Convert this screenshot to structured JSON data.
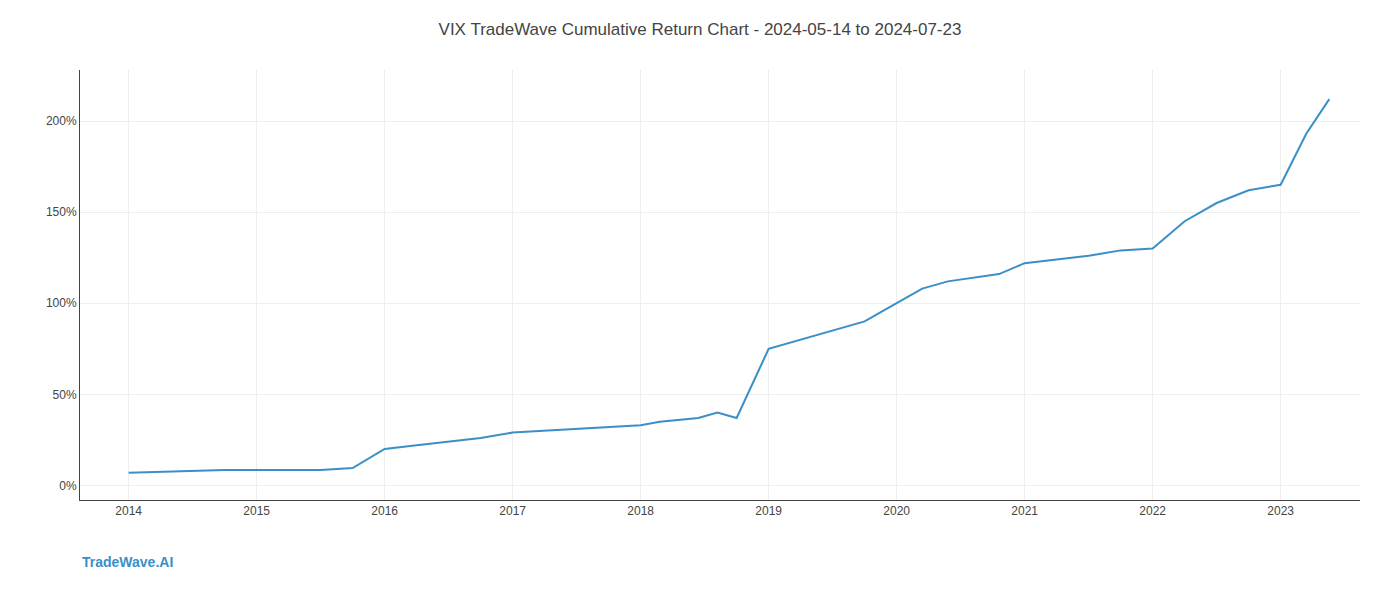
{
  "chart_data": {
    "type": "line",
    "title": "VIX TradeWave Cumulative Return Chart - 2024-05-14 to 2024-07-23",
    "annotations": [
      "TradeWave.AI"
    ],
    "x": [
      2014.0,
      2014.25,
      2014.5,
      2014.75,
      2015.0,
      2015.25,
      2015.5,
      2015.75,
      2016.0,
      2016.25,
      2016.5,
      2016.75,
      2017.0,
      2017.25,
      2017.5,
      2017.75,
      2018.0,
      2018.15,
      2018.3,
      2018.45,
      2018.6,
      2018.75,
      2019.0,
      2019.25,
      2019.5,
      2019.75,
      2020.0,
      2020.2,
      2020.4,
      2020.6,
      2020.8,
      2021.0,
      2021.25,
      2021.5,
      2021.75,
      2022.0,
      2022.25,
      2022.5,
      2022.75,
      2023.0,
      2023.2,
      2023.38
    ],
    "values": [
      7,
      7.5,
      8,
      8.5,
      8.5,
      8.5,
      8.5,
      9.5,
      20,
      22,
      24,
      26,
      29,
      30,
      31,
      32,
      33,
      35,
      36,
      37,
      40,
      37,
      75,
      80,
      85,
      90,
      100,
      108,
      112,
      114,
      116,
      122,
      124,
      126,
      129,
      130,
      145,
      155,
      162,
      165,
      193,
      212
    ],
    "color": "#3a8fc7",
    "xlim": [
      2013.62,
      2023.62
    ],
    "xticks": [
      2014,
      2015,
      2016,
      2017,
      2018,
      2019,
      2020,
      2021,
      2022,
      2023
    ],
    "ylim": [
      -8,
      228
    ],
    "yticks": [
      {
        "value": 0,
        "label": "0%"
      },
      {
        "value": 50,
        "label": "50%"
      },
      {
        "value": 100,
        "label": "100%"
      },
      {
        "value": 150,
        "label": "150%"
      },
      {
        "value": 200,
        "label": "200%"
      }
    ],
    "grid": true
  }
}
